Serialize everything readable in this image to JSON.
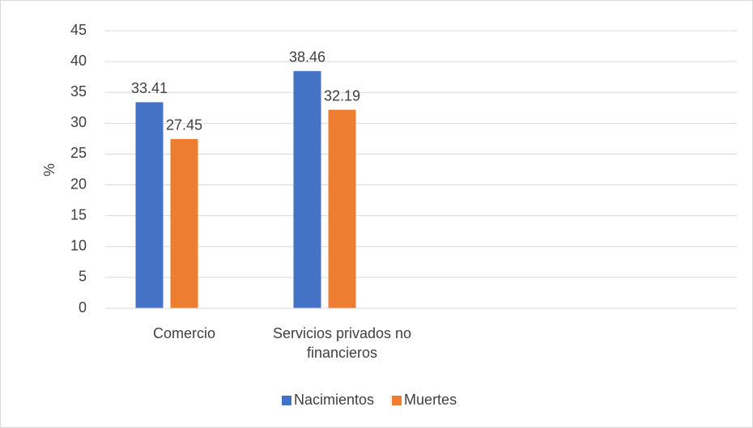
{
  "chart_data": {
    "type": "bar",
    "y_label": "%",
    "categories": [
      "Comercio",
      "Servicios privados no financieros",
      null,
      null
    ],
    "series": [
      {
        "name": "Nacimientos",
        "color": "#4472c4",
        "values": [
          33.41,
          38.46,
          null,
          null
        ]
      },
      {
        "name": "Muertes",
        "color": "#ed7d31",
        "values": [
          27.45,
          32.19,
          null,
          null
        ]
      }
    ],
    "ylim": [
      0,
      45
    ],
    "yticks": [
      0,
      5,
      10,
      15,
      20,
      25,
      30,
      35,
      40,
      45
    ],
    "grid": true,
    "legend": "bottom"
  }
}
